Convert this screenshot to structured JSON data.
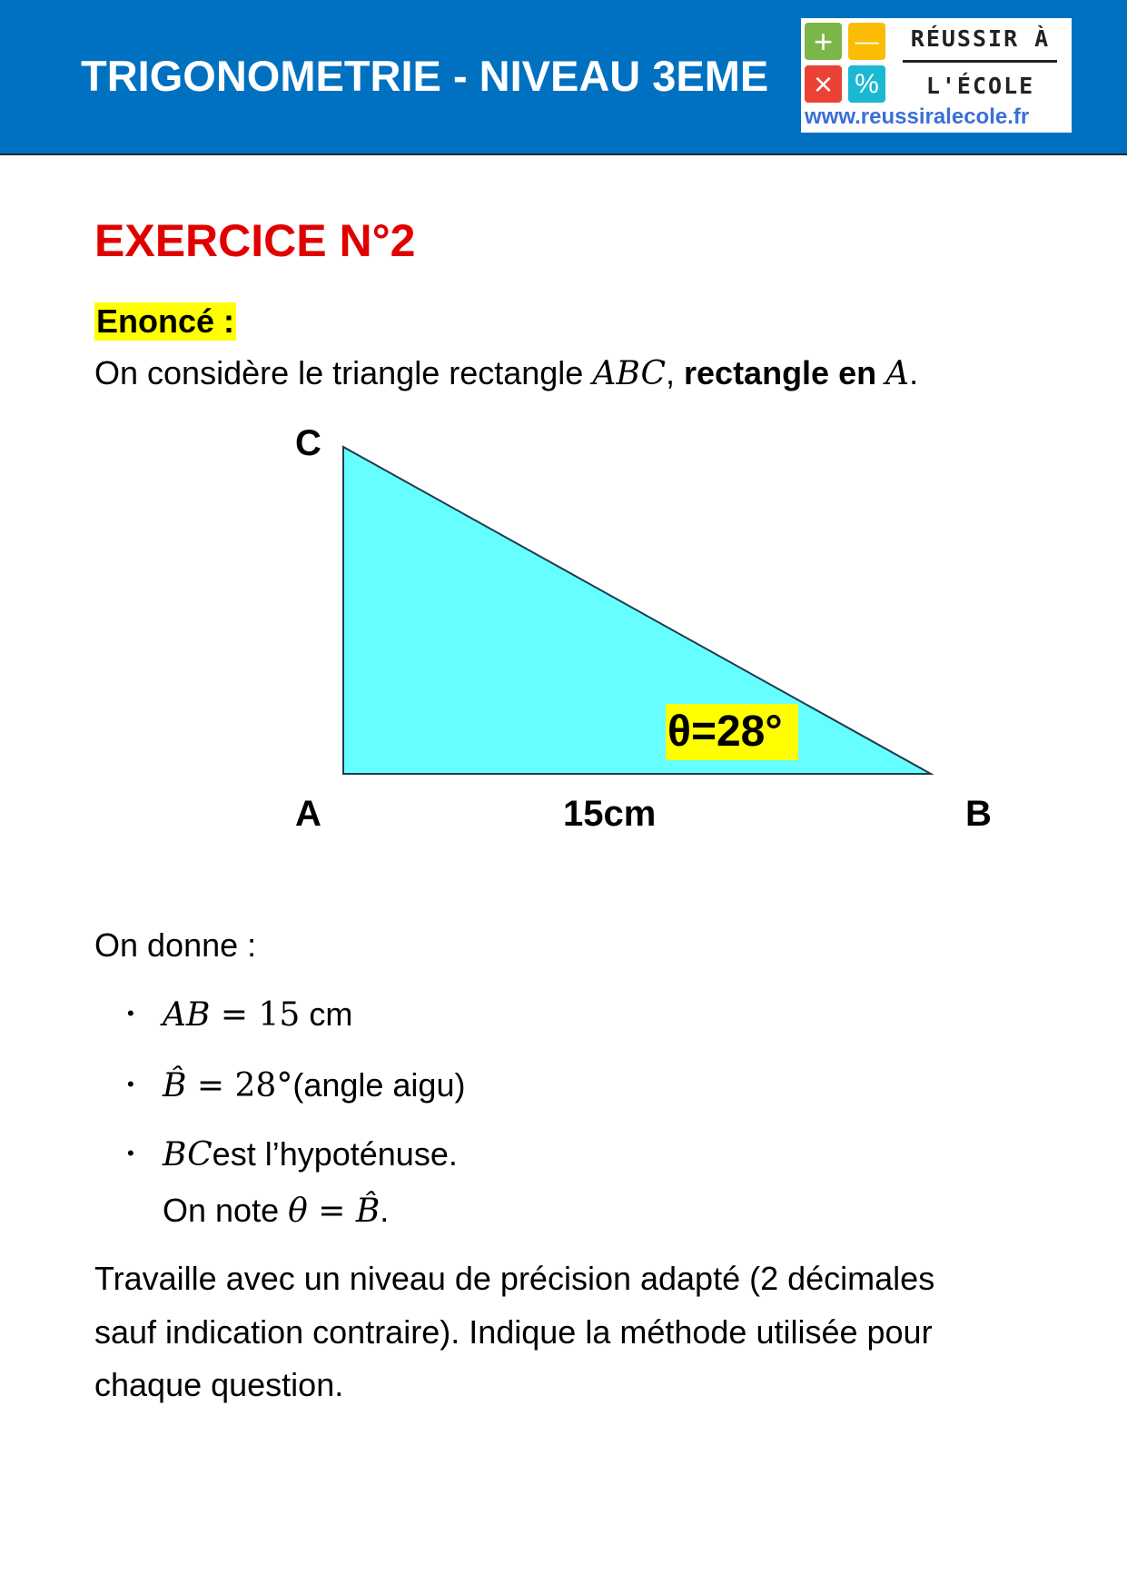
{
  "header": {
    "title": "TRIGONOMETRIE - NIVEAU 3EME",
    "logo": {
      "line1": "RÉUSSIR À",
      "line2": "L'ÉCOLE",
      "url": "www.reussiralecole.fr",
      "tiles": [
        "+",
        "—",
        "×",
        "%"
      ]
    }
  },
  "exercise": {
    "title": "EXERCICE N°2",
    "enonce_label": "Enoncé :",
    "intro": {
      "text": "On considère le triangle rectangle ",
      "abc": "ABC",
      "comma": ", ",
      "bold": "rectangle en ",
      "a": "A",
      "end": "."
    },
    "figure": {
      "vertices": {
        "A": "A",
        "B": "B",
        "C": "C"
      },
      "side_label": "15cm",
      "angle_label": "θ=28°",
      "fill": "#66ffff",
      "highlight": "#ffff00"
    },
    "given_label": "On donne :",
    "bullets": [
      {
        "math": "AB",
        "rest_math": " = 15",
        "text": " cm"
      },
      {
        "math": "B̂",
        "rest_math": " = 28°",
        "text": "(angle aigu)"
      },
      {
        "math": "BC",
        "text": "est l’hypoténuse."
      }
    ],
    "note": {
      "text": "On note ",
      "math": "θ = B̂",
      "end": "."
    },
    "paragraph": [
      "Travaille avec un niveau de précision adapté (2 décimales",
      "sauf indication contraire). Indique la méthode utilisée pour",
      "chaque question."
    ]
  }
}
